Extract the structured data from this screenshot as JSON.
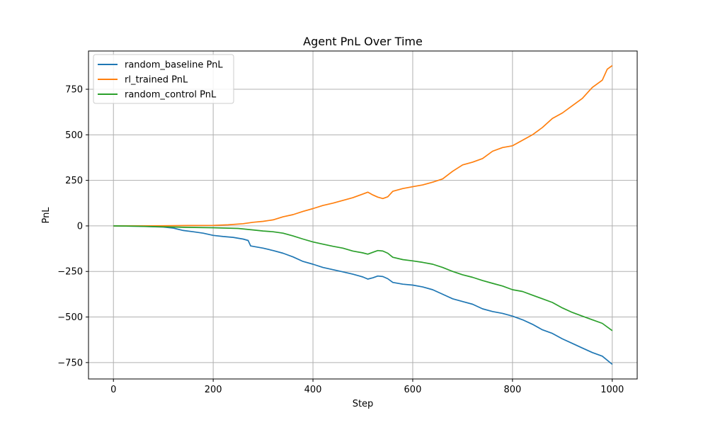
{
  "chart_data": {
    "type": "line",
    "title": "Agent PnL Over Time",
    "xlabel": "Step",
    "ylabel": "PnL",
    "xlim": [
      -50,
      1050
    ],
    "ylim": [
      -840,
      960
    ],
    "xticks": [
      0,
      200,
      400,
      600,
      800,
      1000
    ],
    "yticks": [
      -750,
      -500,
      -250,
      0,
      250,
      500,
      750
    ],
    "ytick_labels": [
      "−750",
      "−500",
      "−250",
      "0",
      "250",
      "500",
      "750"
    ],
    "grid": true,
    "legend_position": "upper-left",
    "series": [
      {
        "name": "random_baseline PnL",
        "color": "#1f77b4",
        "x": [
          0,
          50,
          100,
          120,
          140,
          160,
          180,
          200,
          220,
          240,
          260,
          270,
          275,
          300,
          320,
          340,
          360,
          380,
          400,
          420,
          440,
          460,
          480,
          500,
          510,
          520,
          530,
          540,
          550,
          560,
          580,
          600,
          620,
          640,
          660,
          680,
          700,
          720,
          740,
          760,
          780,
          800,
          820,
          840,
          860,
          880,
          900,
          920,
          940,
          960,
          980,
          1000
        ],
        "y": [
          0,
          -2,
          -6,
          -12,
          -25,
          -32,
          -40,
          -52,
          -58,
          -63,
          -72,
          -80,
          -110,
          -122,
          -135,
          -150,
          -170,
          -195,
          -210,
          -228,
          -240,
          -252,
          -265,
          -280,
          -292,
          -285,
          -275,
          -278,
          -290,
          -310,
          -320,
          -325,
          -335,
          -350,
          -375,
          -400,
          -415,
          -430,
          -455,
          -470,
          -480,
          -495,
          -515,
          -540,
          -570,
          -590,
          -620,
          -645,
          -670,
          -695,
          -715,
          -760
        ]
      },
      {
        "name": "rl_trained PnL",
        "color": "#ff7f0e",
        "x": [
          0,
          50,
          100,
          150,
          200,
          230,
          260,
          280,
          300,
          320,
          340,
          360,
          380,
          400,
          420,
          440,
          460,
          480,
          500,
          510,
          520,
          530,
          540,
          550,
          560,
          580,
          600,
          620,
          640,
          660,
          680,
          700,
          720,
          740,
          760,
          780,
          800,
          820,
          840,
          860,
          880,
          900,
          920,
          940,
          960,
          980,
          990,
          1000
        ],
        "y": [
          0,
          0,
          1,
          2,
          3,
          6,
          12,
          20,
          25,
          33,
          50,
          62,
          80,
          95,
          112,
          125,
          140,
          155,
          175,
          185,
          170,
          158,
          150,
          160,
          190,
          205,
          215,
          225,
          240,
          258,
          300,
          335,
          350,
          370,
          410,
          430,
          440,
          470,
          500,
          540,
          590,
          620,
          660,
          700,
          760,
          800,
          860,
          880
        ]
      },
      {
        "name": "random_control PnL",
        "color": "#2ca02c",
        "x": [
          0,
          50,
          100,
          150,
          200,
          250,
          280,
          300,
          320,
          340,
          360,
          380,
          400,
          420,
          440,
          460,
          480,
          500,
          510,
          520,
          530,
          540,
          550,
          560,
          580,
          600,
          620,
          640,
          660,
          680,
          700,
          720,
          740,
          760,
          780,
          800,
          820,
          840,
          860,
          880,
          900,
          920,
          940,
          960,
          980,
          1000
        ],
        "y": [
          0,
          -2,
          -5,
          -8,
          -10,
          -14,
          -22,
          -28,
          -32,
          -40,
          -55,
          -72,
          -88,
          -100,
          -112,
          -122,
          -138,
          -148,
          -155,
          -145,
          -135,
          -138,
          -150,
          -172,
          -185,
          -192,
          -200,
          -210,
          -228,
          -250,
          -268,
          -282,
          -300,
          -315,
          -330,
          -350,
          -360,
          -380,
          -400,
          -420,
          -450,
          -475,
          -495,
          -515,
          -535,
          -575
        ]
      }
    ]
  }
}
